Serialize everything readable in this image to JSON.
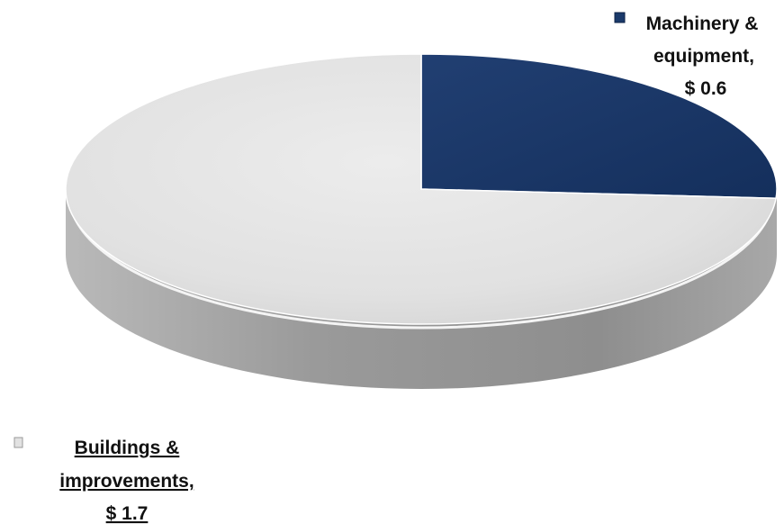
{
  "chart_data": {
    "type": "pie",
    "style": "3d",
    "series": [
      {
        "labels": [
          "Machinery & equipment,",
          "Buildings & improvements,"
        ],
        "values": [
          0.6,
          1.7
        ],
        "value_labels": [
          "$ 0.6",
          "$ 1.7"
        ],
        "colors": [
          "#1b3a6b",
          "#e2e2e2"
        ]
      }
    ],
    "legend": "none",
    "title": ""
  },
  "labels": {
    "machinery": {
      "line1": "Machinery &",
      "line2": "equipment,",
      "value": "$ 0.6"
    },
    "buildings": {
      "line1": "Buildings &",
      "line2": "improvements,",
      "value": "$ 1.7"
    }
  }
}
